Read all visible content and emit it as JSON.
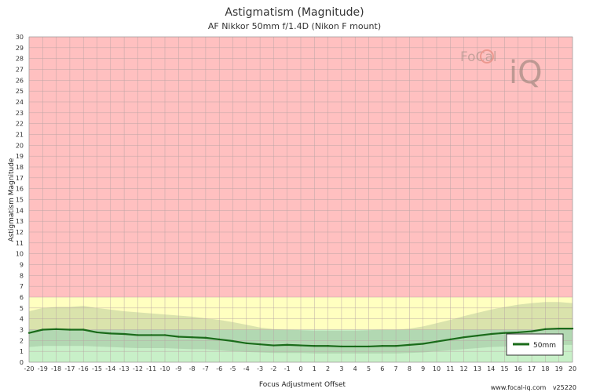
{
  "chart_data": {
    "type": "line",
    "title": "Astigmatism (Magnitude)",
    "subtitle": "AF Nikkor 50mm f/1.4D (Nikon F mount)",
    "xlabel": "Focus Adjustment Offset",
    "ylabel": "Astigmatism Magnitude",
    "xlim": [
      -20,
      20
    ],
    "ylim": [
      0,
      30
    ],
    "x_ticks": [
      -20,
      -19,
      -18,
      -17,
      -16,
      -15,
      -14,
      -13,
      -12,
      -11,
      -10,
      -9,
      -8,
      -7,
      -6,
      -5,
      -4,
      -3,
      -2,
      -1,
      0,
      1,
      2,
      3,
      4,
      5,
      6,
      7,
      8,
      9,
      10,
      11,
      12,
      13,
      14,
      15,
      16,
      17,
      18,
      19,
      20
    ],
    "y_ticks": [
      0,
      1,
      2,
      3,
      4,
      5,
      6,
      7,
      8,
      9,
      10,
      11,
      12,
      13,
      14,
      15,
      16,
      17,
      18,
      19,
      20,
      21,
      22,
      23,
      24,
      25,
      26,
      27,
      28,
      29,
      30
    ],
    "grid": true,
    "legend_position": "bottom-right",
    "zones": [
      {
        "name": "good",
        "from": 0,
        "to": 3,
        "color": "#c8f0c8"
      },
      {
        "name": "fair",
        "from": 3,
        "to": 6,
        "color": "#ffffc0"
      },
      {
        "name": "poor",
        "from": 6,
        "to": 30,
        "color": "#ffc0c0"
      }
    ],
    "series": [
      {
        "name": "50mm",
        "color": "#1a6b1a",
        "x": [
          -20,
          -19,
          -18,
          -17,
          -16,
          -15,
          -14,
          -13,
          -12,
          -11,
          -10,
          -9,
          -8,
          -7,
          -6,
          -5,
          -4,
          -3,
          -2,
          -1,
          0,
          1,
          2,
          3,
          4,
          5,
          6,
          7,
          8,
          9,
          10,
          11,
          12,
          13,
          14,
          15,
          16,
          17,
          18,
          19,
          20
        ],
        "values": [
          2.7,
          3.0,
          3.05,
          3.0,
          3.0,
          2.75,
          2.65,
          2.6,
          2.5,
          2.5,
          2.5,
          2.35,
          2.3,
          2.25,
          2.1,
          1.95,
          1.75,
          1.65,
          1.55,
          1.6,
          1.55,
          1.5,
          1.5,
          1.45,
          1.45,
          1.45,
          1.5,
          1.5,
          1.6,
          1.7,
          1.9,
          2.1,
          2.3,
          2.45,
          2.6,
          2.7,
          2.75,
          2.85,
          3.05,
          3.1,
          3.1
        ],
        "upper": [
          4.7,
          5.0,
          5.1,
          5.1,
          5.2,
          5.0,
          4.85,
          4.7,
          4.6,
          4.5,
          4.4,
          4.3,
          4.2,
          4.05,
          3.9,
          3.7,
          3.45,
          3.2,
          3.05,
          3.0,
          2.95,
          2.9,
          2.9,
          2.9,
          2.9,
          2.95,
          3.0,
          3.0,
          3.1,
          3.3,
          3.6,
          3.9,
          4.25,
          4.55,
          4.85,
          5.1,
          5.3,
          5.45,
          5.55,
          5.55,
          5.45
        ],
        "lower": [
          1.4,
          1.5,
          1.5,
          1.5,
          1.5,
          1.45,
          1.4,
          1.35,
          1.3,
          1.3,
          1.3,
          1.25,
          1.2,
          1.2,
          1.1,
          1.0,
          0.95,
          0.9,
          0.85,
          0.85,
          0.85,
          0.8,
          0.8,
          0.8,
          0.8,
          0.8,
          0.8,
          0.8,
          0.85,
          0.9,
          1.0,
          1.1,
          1.2,
          1.3,
          1.4,
          1.45,
          1.5,
          1.55,
          1.6,
          1.6,
          1.6
        ]
      }
    ]
  },
  "brand": {
    "logo_text_top": "FoCal",
    "logo_text_bottom": "iQ"
  },
  "footer": {
    "site": "www.focal-iq.com",
    "version": "v25220"
  }
}
